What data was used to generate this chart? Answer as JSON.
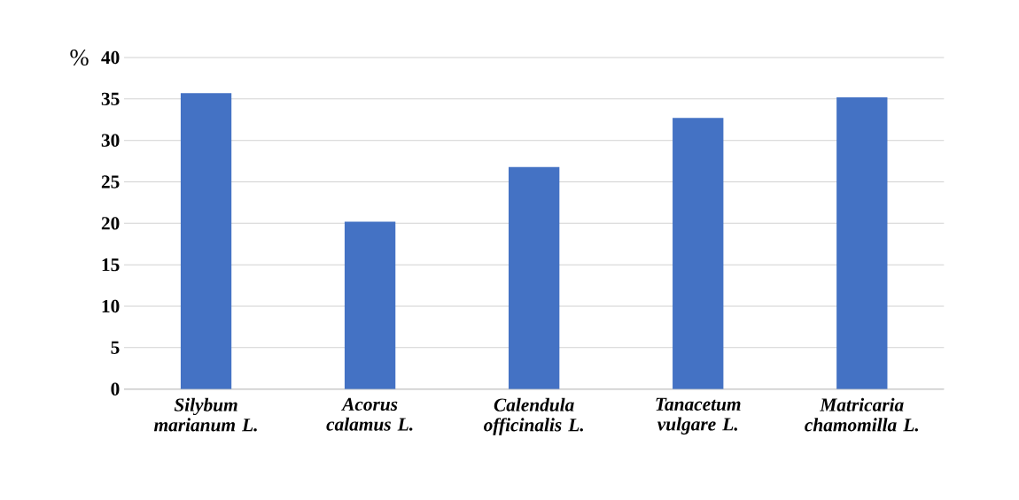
{
  "chart_data": {
    "type": "bar",
    "ylabel": "%",
    "categories": [
      "Silybum marianum L.",
      "Acorus calamus L.",
      "Calendula officinalis L.",
      "Tanacetum vulgare L.",
      "Matricaria chamomilla L."
    ],
    "values": [
      35.7,
      20.2,
      26.8,
      32.7,
      35.2
    ],
    "color": "#4472c4",
    "ylim": [
      0,
      40
    ],
    "yticks": [
      0,
      5,
      10,
      15,
      20,
      25,
      30,
      35,
      40
    ],
    "grid": "y"
  }
}
